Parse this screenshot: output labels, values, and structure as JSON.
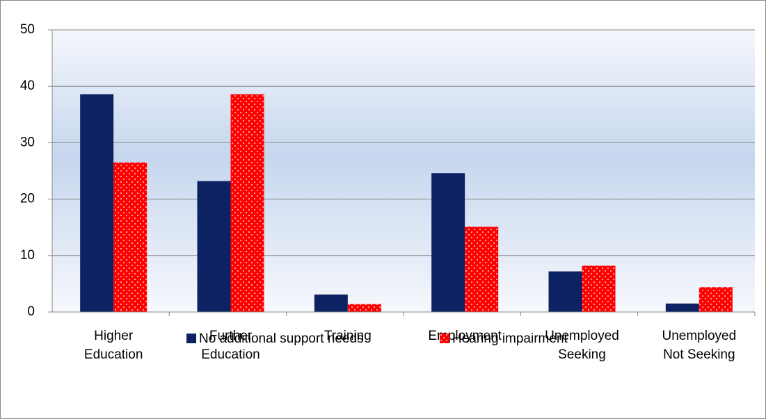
{
  "chart_data": {
    "type": "bar",
    "categories": [
      [
        "Higher",
        "Education"
      ],
      [
        "Further",
        "Education"
      ],
      [
        "Training"
      ],
      [
        "Employment"
      ],
      [
        "Unemployed",
        "Seeking"
      ],
      [
        "Unemployed",
        "Not Seeking"
      ]
    ],
    "series": [
      {
        "name": "No additional support needs",
        "color": "#0d2263",
        "values": [
          38.6,
          23.2,
          3.1,
          24.6,
          7.2,
          1.5
        ]
      },
      {
        "name": "Hearing impairment",
        "color": "#ff0000",
        "values": [
          26.5,
          38.6,
          1.4,
          15.1,
          8.2,
          4.4
        ]
      }
    ],
    "ylim": [
      0,
      50
    ],
    "yticks": [
      0,
      10,
      20,
      30,
      40,
      50
    ],
    "grid": true,
    "legend": "bottom"
  }
}
